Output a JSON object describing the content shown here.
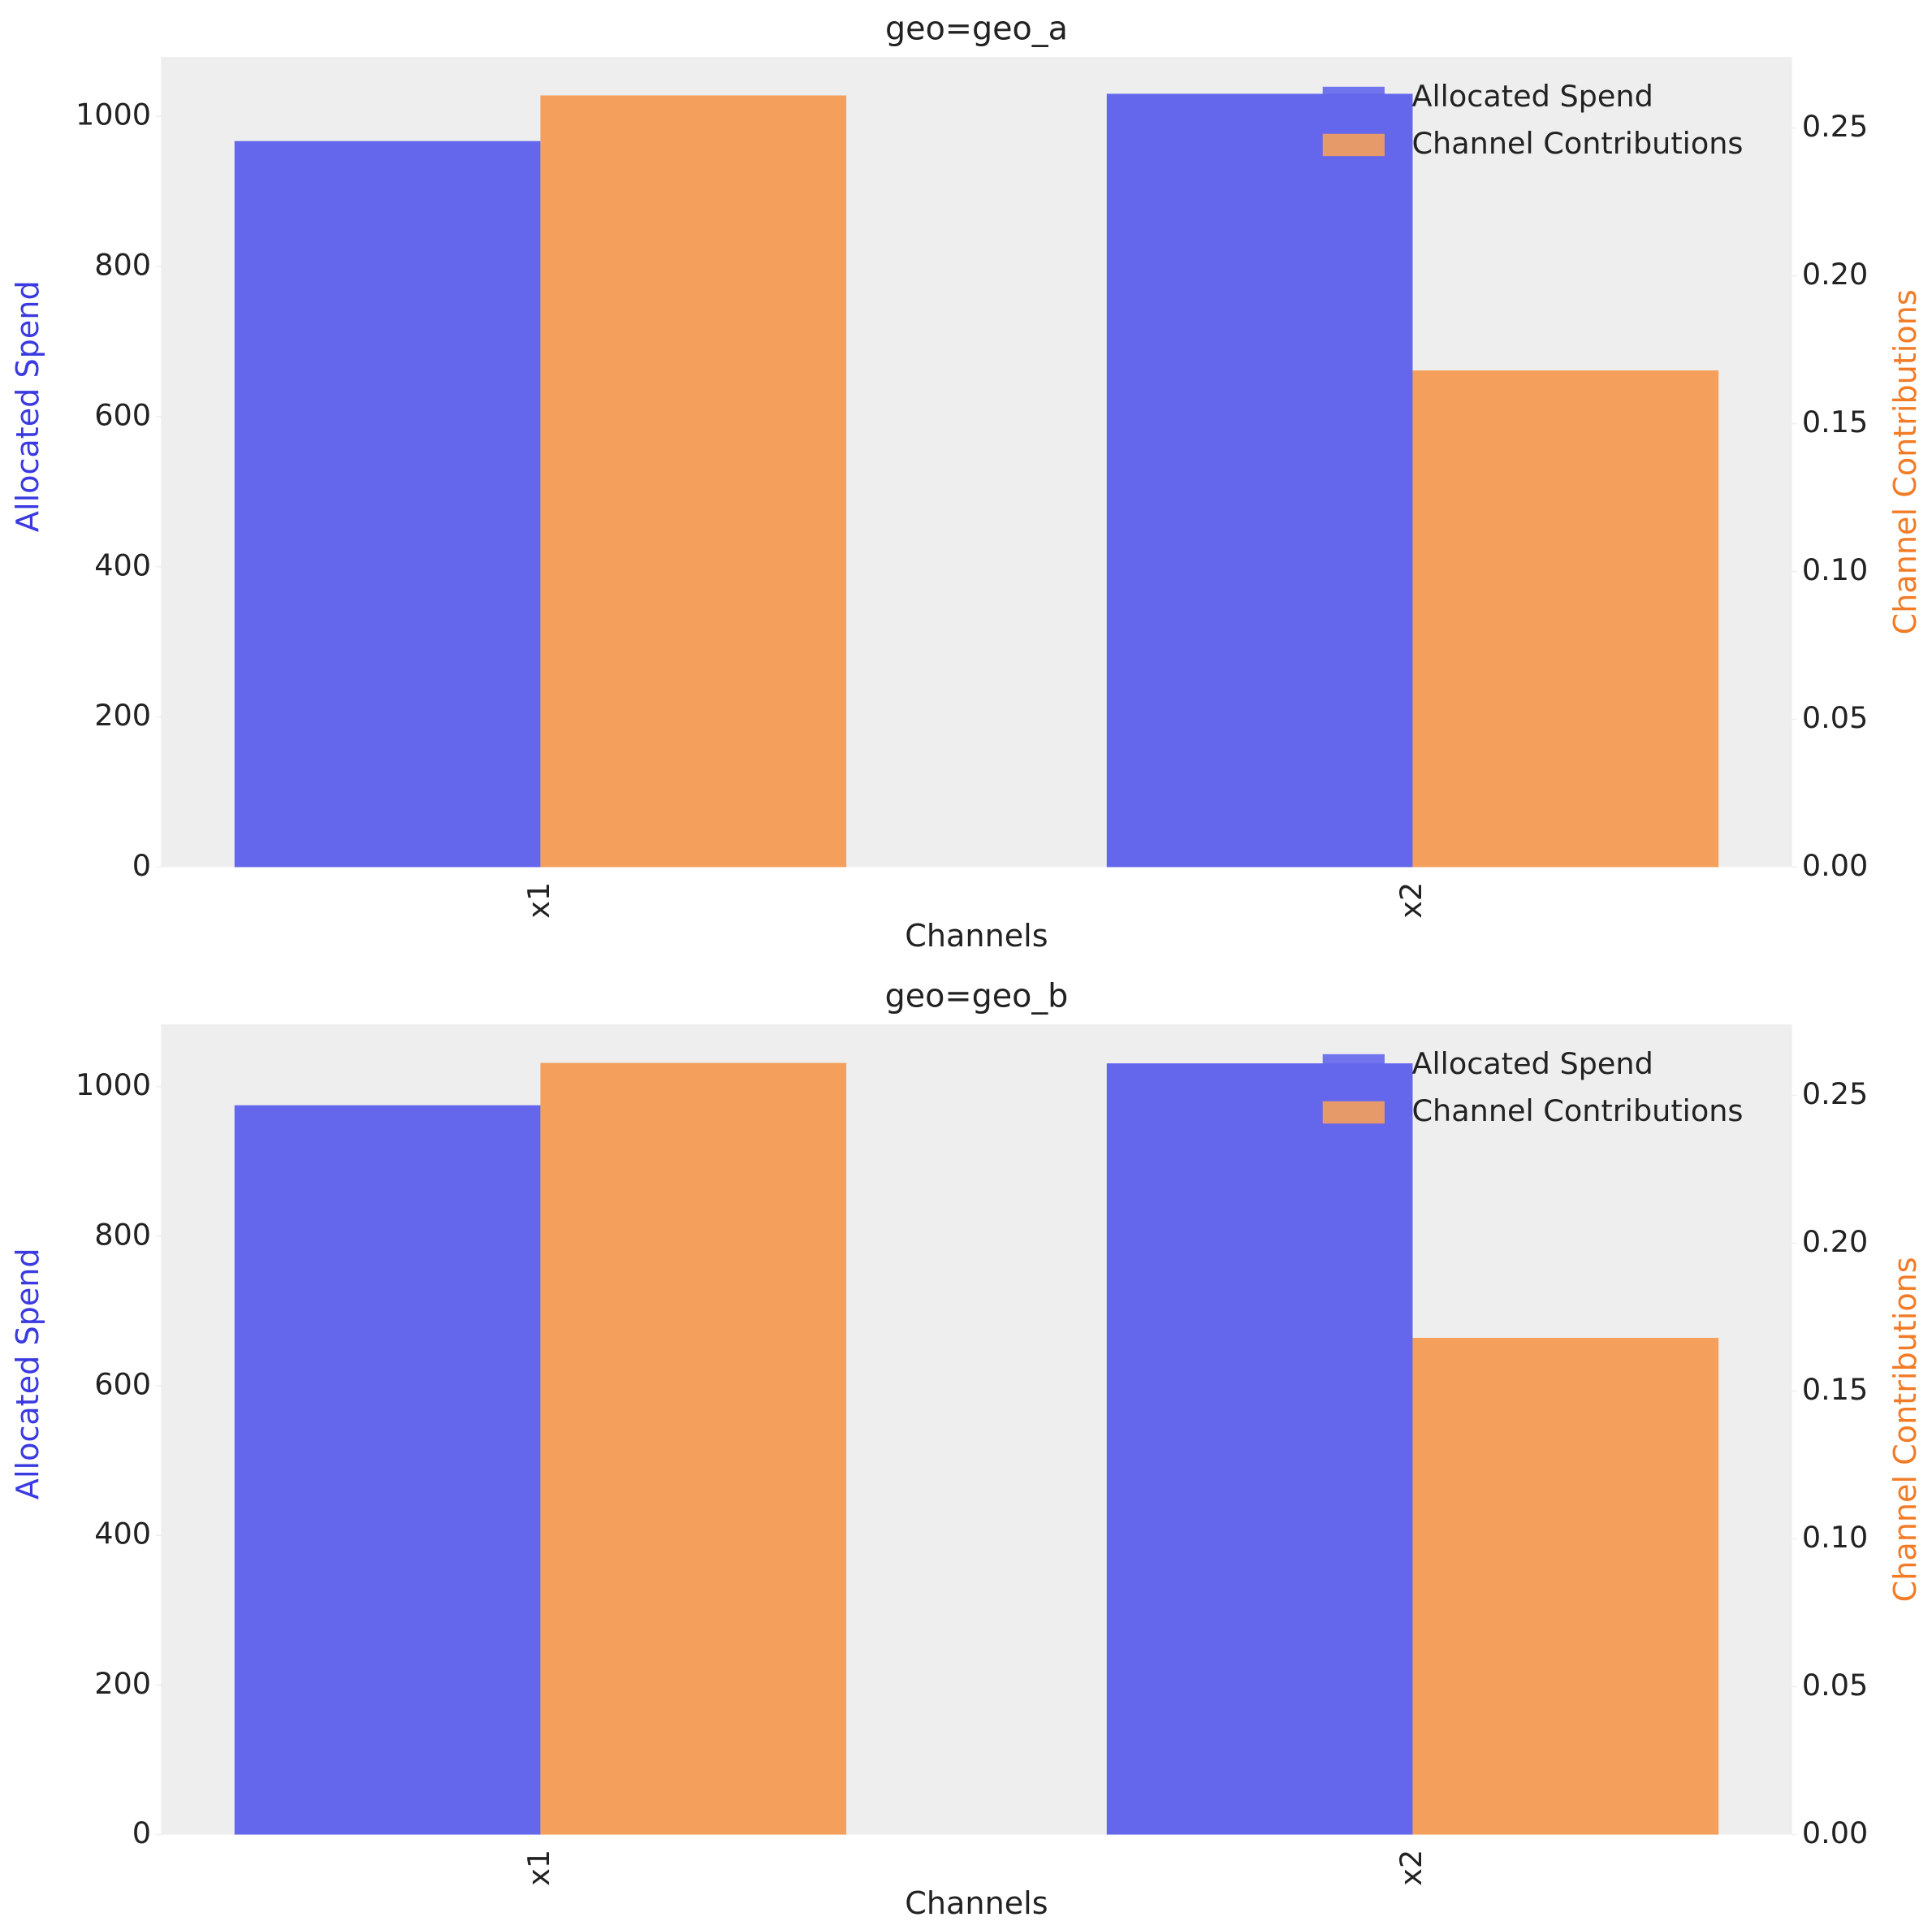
{
  "chart_data": [
    {
      "type": "bar",
      "title": "geo=geo_a",
      "xlabel": "Channels",
      "ylabel": "Allocated Spend",
      "y2label": "Channel Contributions",
      "categories": [
        "x1",
        "x2"
      ],
      "series": [
        {
          "name": "Allocated Spend",
          "color": "#6466ec",
          "values": [
            967,
            1030
          ]
        },
        {
          "name": "Channel Contributions",
          "color": "#f49f5b",
          "values": [
            0.261,
            0.168
          ],
          "axis": "y2"
        }
      ],
      "ylim": [
        0,
        1079
      ],
      "yticks": [
        0,
        200,
        400,
        600,
        800,
        1000
      ],
      "y2lim": [
        0,
        0.274
      ],
      "y2ticks": [
        {
          "value": 0,
          "label": "0.00"
        },
        0.05,
        {
          "value": 0.1,
          "label": "0.10"
        },
        0.15,
        {
          "value": 0.2,
          "label": "0.20"
        },
        0.25
      ],
      "legend": "upper right"
    },
    {
      "type": "bar",
      "title": "geo=geo_b",
      "xlabel": "Channels",
      "ylabel": "Allocated Spend",
      "y2label": "Channel Contributions",
      "categories": [
        "x1",
        "x2"
      ],
      "series": [
        {
          "name": "Allocated Spend",
          "color": "#6466ec",
          "values": [
            975,
            1031
          ]
        },
        {
          "name": "Channel Contributions",
          "color": "#f49f5b",
          "values": [
            0.261,
            0.168
          ],
          "axis": "y2"
        }
      ],
      "ylim": [
        0,
        1083
      ],
      "yticks": [
        0,
        200,
        400,
        600,
        800,
        1000
      ],
      "y2lim": [
        0,
        0.274
      ],
      "y2ticks": [
        {
          "value": 0,
          "label": "0.00"
        },
        0.05,
        {
          "value": 0.1,
          "label": "0.10"
        },
        0.15,
        {
          "value": 0.2,
          "label": "0.20"
        },
        0.25
      ],
      "legend": "upper right"
    }
  ]
}
